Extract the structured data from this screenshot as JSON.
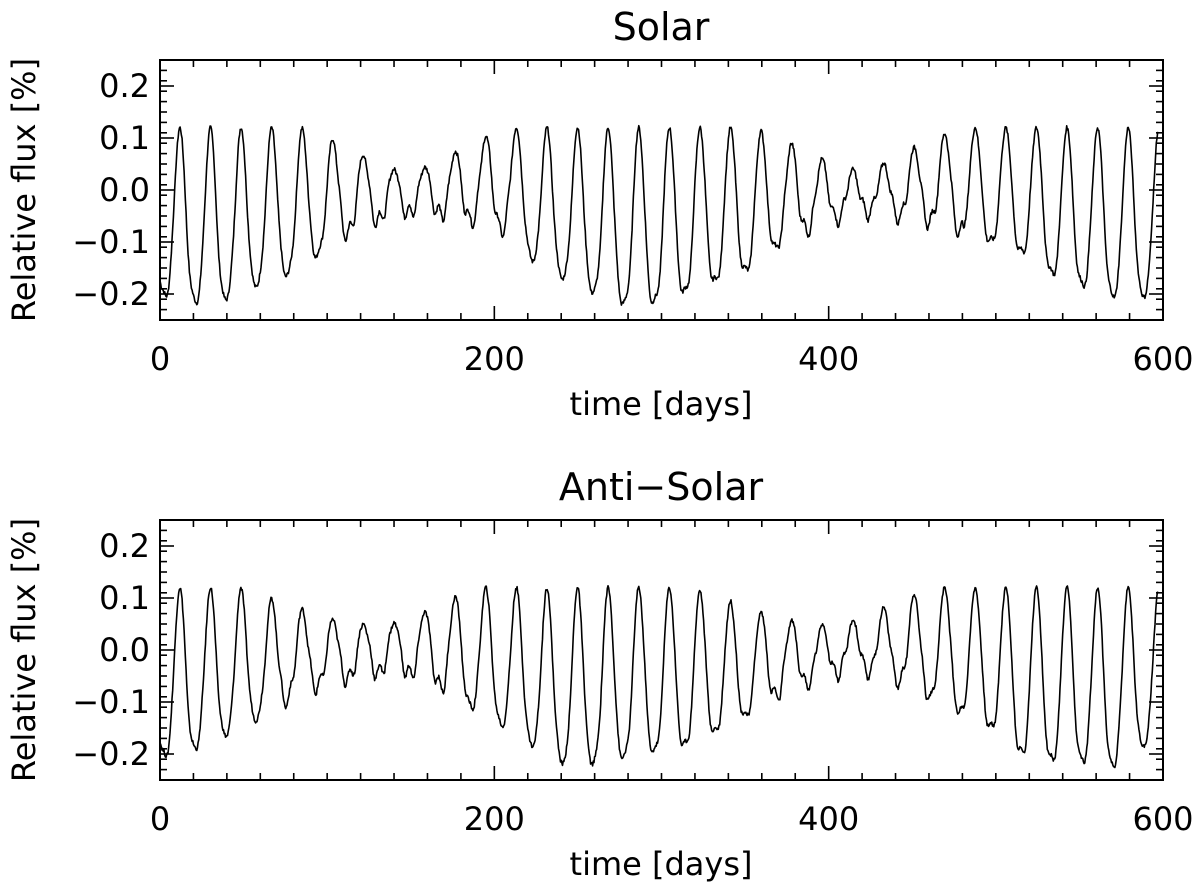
{
  "chart_data": [
    {
      "type": "line",
      "title": "Solar",
      "xlabel": "time [days]",
      "ylabel": "Relative flux [%]",
      "xlim": [
        0,
        600
      ],
      "ylim": [
        -0.25,
        0.25
      ],
      "xticks": [
        0,
        200,
        400,
        600
      ],
      "xtick_labels": [
        "0",
        "200",
        "400",
        "600"
      ],
      "yticks": [
        -0.2,
        -0.1,
        0.0,
        0.1,
        0.2
      ],
      "ytick_labels": [
        "−0.2",
        "−0.1",
        "0.0",
        "0.1",
        "0.2"
      ],
      "grid": false,
      "series": [
        {
          "period_days": 18.3,
          "peak": 0.12,
          "baseline": -0.04,
          "x": [
            0,
            12,
            30,
            48,
            66,
            84,
            102,
            120,
            138,
            156,
            174,
            192,
            210,
            228,
            246,
            264,
            282,
            300,
            318,
            336,
            354,
            372,
            390,
            408,
            426,
            444,
            462,
            480,
            498,
            516,
            534,
            552,
            570,
            588,
            597
          ],
          "min": [
            -0.2,
            -0.2,
            -0.22,
            -0.19,
            -0.17,
            -0.15,
            -0.1,
            -0.07,
            -0.05,
            -0.04,
            -0.05,
            -0.06,
            -0.08,
            -0.15,
            -0.17,
            -0.2,
            -0.22,
            -0.21,
            -0.19,
            -0.17,
            -0.15,
            -0.1,
            -0.07,
            -0.05,
            -0.04,
            -0.05,
            -0.06,
            -0.08,
            -0.1,
            -0.12,
            -0.16,
            -0.18,
            -0.2,
            -0.2,
            -0.19
          ],
          "max": [
            0.12,
            0.12,
            0.12,
            0.12,
            0.12,
            0.12,
            0.1,
            0.07,
            0.04,
            0.04,
            0.07,
            0.1,
            0.12,
            0.12,
            0.12,
            0.12,
            0.12,
            0.12,
            0.12,
            0.12,
            0.12,
            0.1,
            0.07,
            0.04,
            0.04,
            0.07,
            0.1,
            0.12,
            0.12,
            0.12,
            0.12,
            0.12,
            0.12,
            0.12,
            0.12
          ]
        }
      ]
    },
    {
      "type": "line",
      "title": "Anti−Solar",
      "xlabel": "time [days]",
      "ylabel": "Relative flux [%]",
      "xlim": [
        0,
        600
      ],
      "ylim": [
        -0.25,
        0.25
      ],
      "xticks": [
        0,
        200,
        400,
        600
      ],
      "xtick_labels": [
        "0",
        "200",
        "400",
        "600"
      ],
      "yticks": [
        -0.2,
        -0.1,
        0.0,
        0.1,
        0.2
      ],
      "ytick_labels": [
        "−0.2",
        "−0.1",
        "0.0",
        "0.1",
        "0.2"
      ],
      "grid": false,
      "series": [
        {
          "period_days": 18.3,
          "peak": 0.12,
          "baseline": -0.04,
          "x": [
            0,
            12,
            30,
            48,
            66,
            84,
            102,
            120,
            138,
            156,
            174,
            192,
            210,
            228,
            246,
            264,
            282,
            300,
            318,
            336,
            354,
            372,
            390,
            408,
            426,
            444,
            462,
            480,
            498,
            516,
            534,
            552,
            570,
            588,
            597
          ],
          "min": [
            -0.2,
            -0.2,
            -0.17,
            -0.15,
            -0.11,
            -0.08,
            -0.06,
            -0.05,
            -0.04,
            -0.05,
            -0.08,
            -0.12,
            -0.15,
            -0.19,
            -0.22,
            -0.21,
            -0.2,
            -0.19,
            -0.18,
            -0.15,
            -0.12,
            -0.08,
            -0.06,
            -0.04,
            -0.04,
            -0.06,
            -0.09,
            -0.12,
            -0.15,
            -0.2,
            -0.21,
            -0.21,
            -0.22,
            -0.18,
            -0.17
          ],
          "max": [
            0.12,
            0.12,
            0.12,
            0.12,
            0.1,
            0.08,
            0.06,
            0.05,
            0.05,
            0.07,
            0.1,
            0.12,
            0.12,
            0.12,
            0.12,
            0.12,
            0.12,
            0.12,
            0.12,
            0.1,
            0.08,
            0.06,
            0.05,
            0.05,
            0.07,
            0.1,
            0.12,
            0.12,
            0.12,
            0.12,
            0.12,
            0.12,
            0.12,
            0.12,
            0.12
          ]
        }
      ]
    }
  ]
}
